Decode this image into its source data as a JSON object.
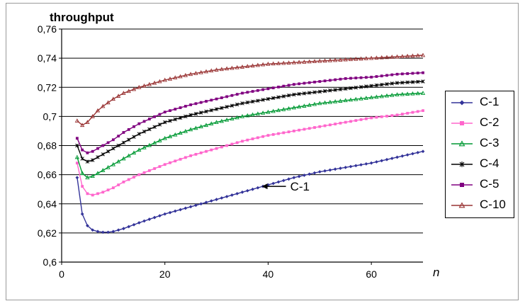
{
  "chart_data": {
    "type": "line",
    "ylabel": "throughput",
    "xlabel": "n",
    "xlim": [
      0,
      70
    ],
    "ylim": [
      0.6,
      0.76
    ],
    "x_ticks": [
      "0",
      "20",
      "40",
      "60"
    ],
    "y_ticks": [
      "0,6",
      "0,62",
      "0,64",
      "0,66",
      "0,68",
      "0,7",
      "0,72",
      "0,74",
      "0,76"
    ],
    "grid": "horizontal",
    "legend_position": "right",
    "annotation": {
      "text": "C-1",
      "arrow": "left",
      "x": 44,
      "y": 0.652
    },
    "series": [
      {
        "name": "C-1",
        "color": "#333399",
        "marker": "diamond",
        "x": [
          3,
          4,
          5,
          6,
          7,
          8,
          9,
          10,
          12,
          15,
          20,
          25,
          30,
          35,
          40,
          45,
          50,
          55,
          60,
          65,
          70
        ],
        "y": [
          0.658,
          0.633,
          0.625,
          0.622,
          0.621,
          0.6205,
          0.6205,
          0.621,
          0.623,
          0.627,
          0.633,
          0.638,
          0.643,
          0.648,
          0.653,
          0.658,
          0.662,
          0.665,
          0.668,
          0.672,
          0.676
        ]
      },
      {
        "name": "C-2",
        "color": "#ff66cc",
        "marker": "square",
        "x": [
          3,
          4,
          5,
          6,
          7,
          8,
          10,
          12,
          15,
          20,
          25,
          30,
          35,
          40,
          45,
          50,
          55,
          60,
          65,
          70
        ],
        "y": [
          0.668,
          0.652,
          0.647,
          0.646,
          0.647,
          0.648,
          0.651,
          0.655,
          0.66,
          0.667,
          0.673,
          0.678,
          0.683,
          0.687,
          0.69,
          0.693,
          0.696,
          0.699,
          0.701,
          0.704
        ]
      },
      {
        "name": "C-3",
        "color": "#009933",
        "marker": "triangle",
        "x": [
          3,
          4,
          5,
          6,
          7,
          8,
          10,
          12,
          15,
          20,
          25,
          30,
          35,
          40,
          45,
          50,
          55,
          60,
          65,
          70
        ],
        "y": [
          0.672,
          0.661,
          0.658,
          0.659,
          0.661,
          0.663,
          0.667,
          0.671,
          0.677,
          0.685,
          0.691,
          0.696,
          0.7,
          0.703,
          0.706,
          0.709,
          0.711,
          0.713,
          0.715,
          0.716
        ]
      },
      {
        "name": "C-4",
        "color": "#000000",
        "marker": "star",
        "x": [
          3,
          4,
          5,
          6,
          7,
          8,
          10,
          12,
          15,
          20,
          25,
          30,
          35,
          40,
          45,
          50,
          55,
          60,
          65,
          70
        ],
        "y": [
          0.68,
          0.671,
          0.669,
          0.67,
          0.672,
          0.674,
          0.678,
          0.682,
          0.688,
          0.696,
          0.701,
          0.705,
          0.709,
          0.712,
          0.715,
          0.717,
          0.719,
          0.721,
          0.723,
          0.724
        ]
      },
      {
        "name": "C-5",
        "color": "#800080",
        "marker": "square",
        "x": [
          3,
          4,
          5,
          6,
          7,
          8,
          10,
          12,
          15,
          20,
          25,
          30,
          35,
          40,
          45,
          50,
          55,
          60,
          65,
          70
        ],
        "y": [
          0.685,
          0.677,
          0.675,
          0.676,
          0.678,
          0.68,
          0.684,
          0.689,
          0.695,
          0.703,
          0.708,
          0.712,
          0.716,
          0.719,
          0.722,
          0.724,
          0.726,
          0.727,
          0.729,
          0.73
        ]
      },
      {
        "name": "C-10",
        "color": "#993333",
        "marker": "triangle",
        "x": [
          3,
          4,
          5,
          6,
          7,
          8,
          10,
          12,
          15,
          20,
          25,
          30,
          35,
          40,
          45,
          50,
          55,
          60,
          65,
          70
        ],
        "y": [
          0.697,
          0.694,
          0.696,
          0.7,
          0.704,
          0.707,
          0.712,
          0.716,
          0.72,
          0.725,
          0.729,
          0.732,
          0.734,
          0.736,
          0.737,
          0.738,
          0.739,
          0.74,
          0.741,
          0.742
        ]
      }
    ]
  }
}
